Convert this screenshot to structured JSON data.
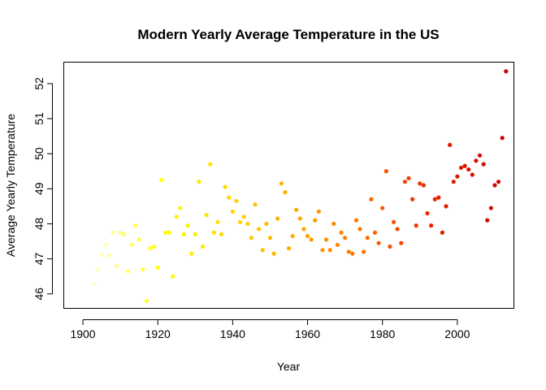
{
  "chart_data": {
    "type": "scatter",
    "title": "Modern Yearly Average Temperature in the US",
    "xlabel": "Year",
    "ylabel": "Average Yearly Temperature",
    "xlim": [
      1895,
      2015
    ],
    "ylim": [
      45.6,
      52.6
    ],
    "xticks": [
      1900,
      1920,
      1940,
      1960,
      1980,
      2000
    ],
    "yticks": [
      46,
      47,
      48,
      49,
      50,
      51,
      52
    ],
    "grid": false,
    "legend": "none",
    "color_scale": "heat (light yellow to red by year)",
    "colors": [
      "#FFFFCC",
      "#FFFF00",
      "#FFD700",
      "#FFA500",
      "#FF6A00",
      "#E52000",
      "#CC0000"
    ],
    "points": [
      {
        "x": 1903,
        "y": 46.3
      },
      {
        "x": 1904,
        "y": 46.7
      },
      {
        "x": 1905,
        "y": 47.1
      },
      {
        "x": 1906,
        "y": 47.4
      },
      {
        "x": 1907,
        "y": 47.1
      },
      {
        "x": 1908,
        "y": 47.75
      },
      {
        "x": 1909,
        "y": 46.8
      },
      {
        "x": 1910,
        "y": 47.75
      },
      {
        "x": 1911,
        "y": 47.7
      },
      {
        "x": 1912,
        "y": 46.65
      },
      {
        "x": 1913,
        "y": 47.4
      },
      {
        "x": 1914,
        "y": 47.95
      },
      {
        "x": 1915,
        "y": 47.55
      },
      {
        "x": 1916,
        "y": 46.7
      },
      {
        "x": 1917,
        "y": 45.8
      },
      {
        "x": 1918,
        "y": 47.3
      },
      {
        "x": 1919,
        "y": 47.35
      },
      {
        "x": 1920,
        "y": 46.75
      },
      {
        "x": 1921,
        "y": 49.25
      },
      {
        "x": 1922,
        "y": 47.75
      },
      {
        "x": 1923,
        "y": 47.75
      },
      {
        "x": 1924,
        "y": 46.5
      },
      {
        "x": 1925,
        "y": 48.2
      },
      {
        "x": 1926,
        "y": 48.45
      },
      {
        "x": 1927,
        "y": 47.7
      },
      {
        "x": 1928,
        "y": 47.95
      },
      {
        "x": 1929,
        "y": 47.15
      },
      {
        "x": 1930,
        "y": 47.7
      },
      {
        "x": 1931,
        "y": 49.2
      },
      {
        "x": 1932,
        "y": 47.35
      },
      {
        "x": 1933,
        "y": 48.25
      },
      {
        "x": 1934,
        "y": 49.7
      },
      {
        "x": 1935,
        "y": 47.75
      },
      {
        "x": 1936,
        "y": 48.05
      },
      {
        "x": 1937,
        "y": 47.7
      },
      {
        "x": 1938,
        "y": 49.05
      },
      {
        "x": 1939,
        "y": 48.75
      },
      {
        "x": 1940,
        "y": 48.35
      },
      {
        "x": 1941,
        "y": 48.65
      },
      {
        "x": 1942,
        "y": 48.05
      },
      {
        "x": 1943,
        "y": 48.2
      },
      {
        "x": 1944,
        "y": 48.0
      },
      {
        "x": 1945,
        "y": 47.6
      },
      {
        "x": 1946,
        "y": 48.55
      },
      {
        "x": 1947,
        "y": 47.85
      },
      {
        "x": 1948,
        "y": 47.25
      },
      {
        "x": 1949,
        "y": 48.0
      },
      {
        "x": 1950,
        "y": 47.6
      },
      {
        "x": 1951,
        "y": 47.15
      },
      {
        "x": 1952,
        "y": 48.15
      },
      {
        "x": 1953,
        "y": 49.15
      },
      {
        "x": 1954,
        "y": 48.9
      },
      {
        "x": 1955,
        "y": 47.3
      },
      {
        "x": 1956,
        "y": 47.65
      },
      {
        "x": 1957,
        "y": 48.4
      },
      {
        "x": 1958,
        "y": 48.15
      },
      {
        "x": 1959,
        "y": 47.85
      },
      {
        "x": 1960,
        "y": 47.65
      },
      {
        "x": 1961,
        "y": 47.55
      },
      {
        "x": 1962,
        "y": 48.1
      },
      {
        "x": 1963,
        "y": 48.35
      },
      {
        "x": 1964,
        "y": 47.25
      },
      {
        "x": 1965,
        "y": 47.55
      },
      {
        "x": 1966,
        "y": 47.25
      },
      {
        "x": 1967,
        "y": 48.0
      },
      {
        "x": 1968,
        "y": 47.4
      },
      {
        "x": 1969,
        "y": 47.75
      },
      {
        "x": 1970,
        "y": 47.6
      },
      {
        "x": 1971,
        "y": 47.2
      },
      {
        "x": 1972,
        "y": 47.15
      },
      {
        "x": 1973,
        "y": 48.1
      },
      {
        "x": 1974,
        "y": 47.85
      },
      {
        "x": 1975,
        "y": 47.2
      },
      {
        "x": 1976,
        "y": 47.6
      },
      {
        "x": 1977,
        "y": 48.7
      },
      {
        "x": 1978,
        "y": 47.75
      },
      {
        "x": 1979,
        "y": 47.45
      },
      {
        "x": 1980,
        "y": 48.45
      },
      {
        "x": 1981,
        "y": 49.5
      },
      {
        "x": 1982,
        "y": 47.35
      },
      {
        "x": 1983,
        "y": 48.05
      },
      {
        "x": 1984,
        "y": 47.85
      },
      {
        "x": 1985,
        "y": 47.45
      },
      {
        "x": 1986,
        "y": 49.2
      },
      {
        "x": 1987,
        "y": 49.3
      },
      {
        "x": 1988,
        "y": 48.7
      },
      {
        "x": 1989,
        "y": 47.95
      },
      {
        "x": 1990,
        "y": 49.15
      },
      {
        "x": 1991,
        "y": 49.1
      },
      {
        "x": 1992,
        "y": 48.3
      },
      {
        "x": 1993,
        "y": 47.95
      },
      {
        "x": 1994,
        "y": 48.7
      },
      {
        "x": 1995,
        "y": 48.75
      },
      {
        "x": 1996,
        "y": 47.75
      },
      {
        "x": 1997,
        "y": 48.5
      },
      {
        "x": 1998,
        "y": 50.25
      },
      {
        "x": 1999,
        "y": 49.2
      },
      {
        "x": 2000,
        "y": 49.35
      },
      {
        "x": 2001,
        "y": 49.6
      },
      {
        "x": 2002,
        "y": 49.65
      },
      {
        "x": 2003,
        "y": 49.55
      },
      {
        "x": 2004,
        "y": 49.4
      },
      {
        "x": 2005,
        "y": 49.8
      },
      {
        "x": 2006,
        "y": 49.95
      },
      {
        "x": 2007,
        "y": 49.7
      },
      {
        "x": 2008,
        "y": 48.1
      },
      {
        "x": 2009,
        "y": 48.45
      },
      {
        "x": 2010,
        "y": 49.1
      },
      {
        "x": 2011,
        "y": 49.2
      },
      {
        "x": 2012,
        "y": 50.45
      },
      {
        "x": 2013,
        "y": 52.35
      }
    ]
  }
}
